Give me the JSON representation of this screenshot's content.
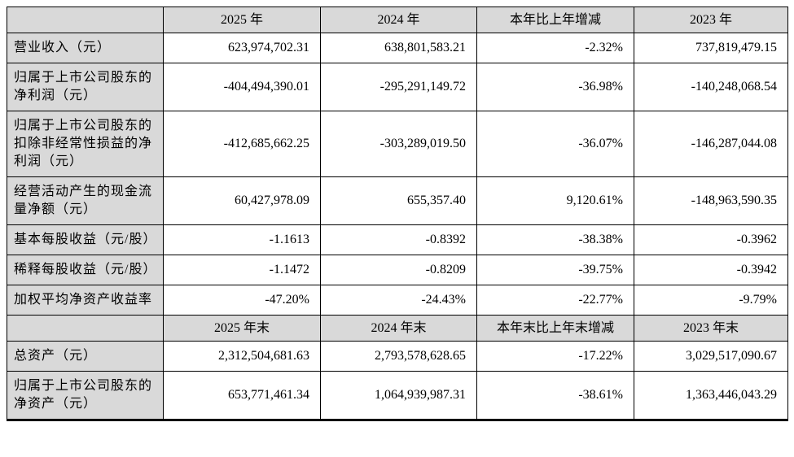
{
  "colors": {
    "header_bg": "#d9d9d9",
    "cell_bg": "#ffffff",
    "border": "#000000",
    "text": "#000000"
  },
  "table": {
    "sections": [
      {
        "headers": [
          "",
          "2025 年",
          "2024 年",
          "本年比上年增减",
          "2023 年"
        ],
        "rows": [
          {
            "label": "营业收入（元）",
            "values": [
              "623,974,702.31",
              "638,801,583.21",
              "-2.32%",
              "737,819,479.15"
            ]
          },
          {
            "label": "归属于上市公司股东的净利润（元）",
            "values": [
              "-404,494,390.01",
              "-295,291,149.72",
              "-36.98%",
              "-140,248,068.54"
            ]
          },
          {
            "label": "归属于上市公司股东的扣除非经常性损益的净利润（元）",
            "values": [
              "-412,685,662.25",
              "-303,289,019.50",
              "-36.07%",
              "-146,287,044.08"
            ]
          },
          {
            "label": "经营活动产生的现金流量净额（元）",
            "values": [
              "60,427,978.09",
              "655,357.40",
              "9,120.61%",
              "-148,963,590.35"
            ]
          },
          {
            "label": "基本每股收益（元/股）",
            "values": [
              "-1.1613",
              "-0.8392",
              "-38.38%",
              "-0.3962"
            ]
          },
          {
            "label": "稀释每股收益（元/股）",
            "values": [
              "-1.1472",
              "-0.8209",
              "-39.75%",
              "-0.3942"
            ]
          },
          {
            "label": "加权平均净资产收益率",
            "values": [
              "-47.20%",
              "-24.43%",
              "-22.77%",
              "-9.79%"
            ]
          }
        ]
      },
      {
        "headers": [
          "",
          "2025 年末",
          "2024 年末",
          "本年末比上年末增减",
          "2023 年末"
        ],
        "rows": [
          {
            "label": "总资产（元）",
            "values": [
              "2,312,504,681.63",
              "2,793,578,628.65",
              "-17.22%",
              "3,029,517,090.67"
            ]
          },
          {
            "label": "归属于上市公司股东的净资产（元）",
            "values": [
              "653,771,461.34",
              "1,064,939,987.31",
              "-38.61%",
              "1,363,446,043.29"
            ]
          }
        ]
      }
    ]
  }
}
